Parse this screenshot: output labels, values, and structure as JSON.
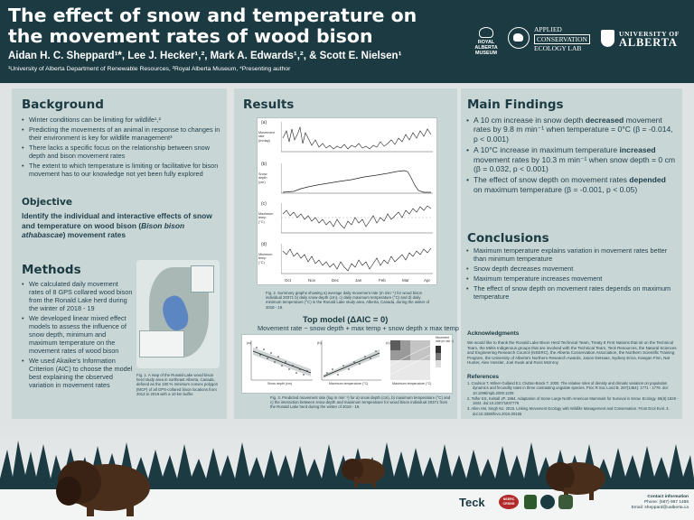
{
  "header": {
    "title": "The effect of snow and temperature on the movement rates of wood bison",
    "authors": "Aidan H. C. Sheppard¹*, Lee J. Hecker¹,², Mark A. Edwards¹,², & Scott E. Nielsen¹",
    "affiliations": "¹University of Alberta Department of Renewable Resources, ²Royal Alberta Museum, *Presenting author",
    "logos": {
      "ram_line1": "ROYAL ALBERTA",
      "ram_line2": "MUSEUM",
      "acel_line1": "APPLIED",
      "acel_line2": "CONSERVATION",
      "acel_line3": "ECOLOGY LAB",
      "ua_line1": "UNIVERSITY OF",
      "ua_line2": "ALBERTA"
    }
  },
  "background": {
    "heading": "Background",
    "bullets": [
      "Winter conditions can be limiting for wildlife¹,²",
      "Predicting the movements of an animal in response to changes in their environment is key for wildlife management³",
      "There lacks a specific focus on the relationship between snow depth and bison movement rates",
      "The extent to which temperature is limiting or facilitative for bison movement has to our knowledge not yet been fully explored"
    ]
  },
  "objective": {
    "heading": "Objective",
    "text_before": "Identify the individual and interactive effects of snow and temperature on wood bison (",
    "italic": "Bison bison athabascae",
    "text_after": ") movement rates"
  },
  "methods": {
    "heading": "Methods",
    "bullets": [
      "We calculated daily movement rates of 8 GPS collared wood bison from the Ronald Lake herd during the winter of 2018 - 19",
      "We developed linear mixed effect models to assess the influence of snow depth, minimum and maximum temperature on the movement rates of wood bison",
      "We used Akaike's Information Criterion (AIC) to choose the model best explaining the observed variation in movement rates"
    ],
    "map_caption": "Fig. 1. A map of the Ronald Lake wood bison herd study area in northeast Alberta, Canada, defined as the 100 % minimum convex polygon (MCP) of all GPS-collared bison locations from 2013 to 2019 with a 10 km buffer."
  },
  "results": {
    "heading": "Results",
    "panel_labels": [
      "(a)",
      "(b)",
      "(c)",
      "(d)"
    ],
    "y_labels": [
      "Movement rate (m/day)",
      "Snow depth (cm)",
      "Maximum temp (°C)",
      "Minimum temp (°C)"
    ],
    "x_ticks": [
      "Oct",
      "Nov",
      "Dec",
      "Jan",
      "Feb",
      "Mar",
      "Apr"
    ],
    "fig2_caption": "Fig. 2. Summary graphs showing a) average daily movement rate (m min⁻¹) for wood bison individual 20371 b) daily snow depth (cm), c) daily maximum temperature (°C) and d) daily minimum temperature (°C) in the Ronald Lake study area, Alberta, Canada, during the winter of 2018 - 19.",
    "top_model_title": "Top model (ΔAIC = 0)",
    "formula": "Movement rate ~ snow depth + max temp + snow depth x max temp",
    "fig3_x_labels": [
      "Snow depth (cm)",
      "Maximum temperature (°C)",
      "Maximum temperature (°C)"
    ],
    "fig3_panel_labels": [
      "(a)",
      "(b)",
      "(c)"
    ],
    "fig3_legend_title": "Movement rate (m min⁻¹)",
    "fig3_caption": "Fig. 3. Predicted movement rate (log m min⁻¹) for a) snow depth (cm), b) maximum temperature (°C) and c) the interaction between snow depth and maximum temperature for wood bison individual 20371 from the Ronald Lake herd during the winter of 2018 - 19."
  },
  "main_findings": {
    "heading": "Main Findings",
    "bullets": [
      {
        "pre": "A 10 cm increase in snow depth ",
        "bold": "decreased",
        "post": " movement rates by 9.8 m min⁻¹ when temperature = 0°C (β = -0.014, p < 0.001)"
      },
      {
        "pre": "A 10°C increase in maximum temperature ",
        "bold": "increased",
        "post": " movement rates by 10.3 m min⁻¹ when snow depth = 0 cm (β = 0.032, p < 0.001)"
      },
      {
        "pre": "The effect of snow depth on movement rates ",
        "bold": "depended",
        "post": " on maximum temperature (β = -0.001, p < 0.05)"
      }
    ]
  },
  "conclusions": {
    "heading": "Conclusions",
    "bullets": [
      "Maximum temperature explains variation in movement rates better than minimum temperature",
      "Snow depth decreases movement",
      "Maximum temperature increases movement",
      "The effect of snow depth on movement rates depends on maximum temperature"
    ]
  },
  "acknowledgments": {
    "heading": "Acknowledgments",
    "text": "We would like to thank the Ronald Lake Bison Herd Technical Team, Treaty 8 First Nations that sit on the Technical Team, the Métis Indigenous groups that are involved with the Technical Team, Teck Resources, the Natural Sciences and Engineering Research Council (NSERC), the Alberta Conservation Association, the Northern Scientific Training Program, the University of Alberta's Northern Research Awards, Jason DeHaas, Sydney Erica, Kaegan Finn, Nat Hunter, Alex Hossler, Joel Kwok and Ross McInroy"
  },
  "references": {
    "heading": "References",
    "items": [
      "1. Coulson T, Milner-Gulland EJ, Clutton-Brock T. 2000. The relative roles of density and climatic variation on population dynamics and fecundity rates in three contrasting ungulate species. Proc R Soc Lond B. 267(1454): 1771 - 1779. doi: 10.1098/rspb.2000.1209",
      "2. Telfer ES, Kelsall JP. 1984. Adaptation of Some Large North American Mammals for Survival in Snow. Ecology. 65(6):1828 - 1834. doi:10.2307/1937779",
      "3. Allen AM, Singh NJ. 2016. Linking Movement Ecology with Wildlife Management and Conservation. Front Ecol Evol. 3. doi:10.3389/fevo.2015.00155"
    ]
  },
  "footer": {
    "sponsors": [
      "Teck",
      "NSERC CRSNG"
    ],
    "contact_title": "Contact information",
    "phone": "Phone: (587) 987 1488",
    "email": "Email: sheppard@ualberta.ca"
  }
}
